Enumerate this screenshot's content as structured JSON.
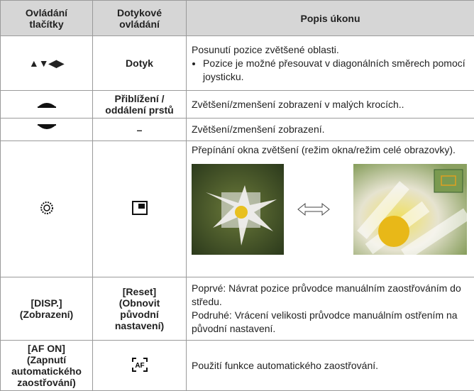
{
  "table": {
    "header": [
      [
        "Ovládání",
        "tlačítky"
      ],
      [
        "Dotykové",
        "ovládání"
      ],
      [
        "Popis úkonu"
      ]
    ],
    "rows": [
      {
        "button": [
          "▲▼◀▶"
        ],
        "touch": [
          "Dotyk"
        ],
        "description": [
          "Posunutí pozice zvětšené oblasti."
        ],
        "bullets": [
          "Pozice je možné přesouvat v diagonálních směrech pomocí joysticku."
        ]
      },
      {
        "button": [],
        "touch": [
          "Přiblížení /",
          "oddálení prstů"
        ],
        "description": [
          "Zvětšení/zmenšení zobrazení v malých krocích.."
        ]
      },
      {
        "button": [],
        "touch": [
          "–"
        ],
        "description": [
          "Zvětšení/zmenšení zobrazení."
        ]
      },
      {
        "button": [],
        "touch": [],
        "description": [
          "Přepínání okna zvětšení (režim okna/režim celé obrazovky)."
        ]
      },
      {
        "button": [
          "[DISP.]",
          "(Zobrazení)"
        ],
        "touch": [
          "[Reset]",
          "(Obnovit",
          "původní",
          "nastavení)"
        ],
        "description": [
          "Poprvé: Návrat pozice průvodce manuálním zaostřováním do středu.",
          "Podruhé: Vrácení velikosti průvodce manuálním ostřením na původní nastavení."
        ]
      },
      {
        "button": [
          "[AF ON]",
          "(Zapnutí",
          "automatického",
          "zaostřování)"
        ],
        "touch": [],
        "touch_icon_text": "AF",
        "description": [
          "Použití funkce automatického zaostřování."
        ]
      }
    ]
  }
}
